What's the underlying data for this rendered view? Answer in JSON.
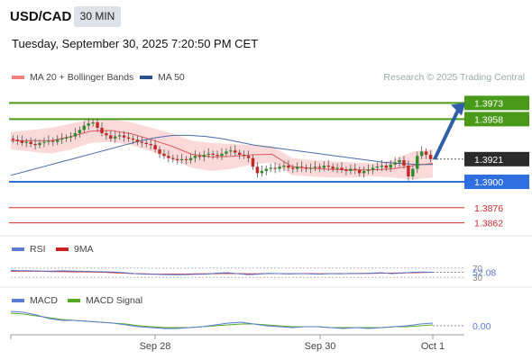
{
  "header": {
    "symbol": "USD/CAD",
    "timeframe": "30 MIN",
    "datetime": "Tuesday, September 30, 2025 7:20:50 PM CET"
  },
  "main_legend": {
    "items": [
      {
        "label": "MA 20 + Bollinger Bands",
        "color": "#f08080"
      },
      {
        "label": "MA 50",
        "color": "#2f4f8f"
      }
    ],
    "credit": "Research © 2025 Trading Central"
  },
  "chart_data": [
    {
      "type": "candlestick",
      "name": "USD/CAD 30 MIN",
      "x_ticks": [
        "Sep 28",
        "Sep 30",
        "Oct 1"
      ],
      "ylim": [
        1.385,
        1.3985
      ],
      "levels": [
        {
          "value": "1.3973",
          "price": 1.3973,
          "kind": "resistance",
          "color": "#4a9a1a"
        },
        {
          "value": "1.3958",
          "price": 1.3958,
          "kind": "resistance",
          "color": "#4a9a1a"
        },
        {
          "value": "1.3921",
          "price": 1.3921,
          "kind": "last",
          "color": "#2b2b2b"
        },
        {
          "value": "1.3900",
          "price": 1.39,
          "kind": "pivot",
          "color": "#2f6fe0"
        },
        {
          "value": "1.3876",
          "price": 1.3876,
          "kind": "support",
          "color": "#cc2b2b"
        },
        {
          "value": "1.3862",
          "price": 1.3862,
          "kind": "support",
          "color": "#cc2b2b"
        }
      ],
      "close": [
        1.3939,
        1.3938,
        1.3936,
        1.3937,
        1.3935,
        1.3934,
        1.3936,
        1.3937,
        1.3938,
        1.3937,
        1.3939,
        1.394,
        1.3941,
        1.3942,
        1.3945,
        1.3948,
        1.3952,
        1.3954,
        1.3955,
        1.395,
        1.3945,
        1.3943,
        1.394,
        1.3942,
        1.3943,
        1.3941,
        1.394,
        1.3939,
        1.3937,
        1.3936,
        1.3935,
        1.3934,
        1.393,
        1.3926,
        1.3924,
        1.3922,
        1.3921,
        1.392,
        1.3921,
        1.392,
        1.3922,
        1.3924,
        1.3923,
        1.3925,
        1.3926,
        1.3925,
        1.3924,
        1.3926,
        1.3928,
        1.3929,
        1.3927,
        1.3925,
        1.3924,
        1.3922,
        1.3914,
        1.3908,
        1.391,
        1.3912,
        1.3913,
        1.3912,
        1.3914,
        1.3915,
        1.3913,
        1.3912,
        1.3914,
        1.3913,
        1.3912,
        1.3913,
        1.3914,
        1.3913,
        1.3915,
        1.3914,
        1.3912,
        1.3913,
        1.3911,
        1.391,
        1.3912,
        1.3911,
        1.3908,
        1.391,
        1.3911,
        1.3913,
        1.3914,
        1.3915,
        1.3913,
        1.3916,
        1.3918,
        1.392,
        1.3915,
        1.3905,
        1.3912,
        1.3924,
        1.3928,
        1.3925,
        1.3921
      ],
      "ma50": [
        1.3906,
        1.391,
        1.3914,
        1.3918,
        1.3922,
        1.3926,
        1.393,
        1.3934,
        1.3938,
        1.3941,
        1.3943,
        1.3943,
        1.3942,
        1.394,
        1.3937,
        1.3934,
        1.3932,
        1.393,
        1.3928,
        1.3926,
        1.3924,
        1.3922,
        1.392,
        1.3918,
        1.3917,
        1.3916,
        1.3916
      ],
      "bollinger_upper": [
        1.3946,
        1.3948,
        1.395,
        1.3954,
        1.3958,
        1.3958,
        1.3955,
        1.395,
        1.3945,
        1.3938,
        1.3936,
        1.3935,
        1.3934,
        1.3933,
        1.3922,
        1.392,
        1.3919,
        1.3918,
        1.3917,
        1.392,
        1.3928,
        1.393
      ],
      "bollinger_lower": [
        1.393,
        1.3928,
        1.3926,
        1.393,
        1.3936,
        1.3937,
        1.3934,
        1.3928,
        1.3921,
        1.3913,
        1.391,
        1.3912,
        1.3916,
        1.3918,
        1.3906,
        1.3905,
        1.3904,
        1.3904,
        1.3905,
        1.3904,
        1.3902,
        1.3904
      ],
      "arrow": {
        "from": 1.3921,
        "to": 1.3973
      }
    },
    {
      "type": "line",
      "name": "RSI",
      "legend": [
        {
          "label": "RSI",
          "color": "#5b7bd5"
        },
        {
          "label": "9MA",
          "color": "#cc2222"
        }
      ],
      "ylim": [
        0,
        100
      ],
      "ticks": [
        "70",
        "30"
      ],
      "last_value": "52.08",
      "rsi": [
        60,
        59,
        58,
        57,
        57,
        58,
        57,
        56,
        55,
        54,
        53,
        50,
        46,
        44,
        43,
        42,
        41,
        42,
        43,
        44,
        48,
        50,
        46,
        42,
        44,
        47,
        46,
        45,
        46,
        45,
        44,
        46,
        45,
        47,
        46,
        48,
        50,
        46,
        48,
        52,
        53,
        52
      ],
      "ma9": [
        57,
        57,
        56,
        56,
        55,
        55,
        54,
        54,
        53,
        52,
        50,
        48,
        46,
        45,
        44,
        44,
        44,
        44,
        45,
        45,
        46,
        47,
        46,
        45,
        45,
        46,
        46,
        45,
        46,
        46,
        45,
        46,
        46,
        46,
        47,
        47,
        48,
        48,
        49,
        50,
        51,
        52
      ]
    },
    {
      "type": "line",
      "name": "MACD",
      "legend": [
        {
          "label": "MACD",
          "color": "#5b7bd5"
        },
        {
          "label": "MACD Signal",
          "color": "#55aa22"
        }
      ],
      "last_value": "0.00",
      "macd": [
        0.0016,
        0.0015,
        0.0012,
        0.0008,
        0.0006,
        0.0006,
        0.0005,
        0.0004,
        0.0003,
        0.0001,
        -0.0001,
        -0.0002,
        -0.0003,
        -0.0003,
        -0.0002,
        -0.0001,
        0.0001,
        0.0003,
        0.0004,
        0.0002,
        0.0,
        -0.0001,
        -0.0002,
        -0.0001,
        -0.0001,
        -0.0002,
        -0.0003,
        -0.0002,
        -0.0003,
        -0.0002,
        -0.0001,
        0.0,
        0.0002,
        0.0003
      ],
      "signal": [
        0.0014,
        0.0013,
        0.0011,
        0.0009,
        0.0007,
        0.0006,
        0.0005,
        0.0004,
        0.0003,
        0.0002,
        0.0,
        -0.0001,
        -0.0002,
        -0.0002,
        -0.0002,
        -0.0001,
        0.0,
        0.0001,
        0.0002,
        0.0002,
        0.0001,
        0.0,
        -0.0001,
        -0.0001,
        -0.0001,
        -0.0002,
        -0.0002,
        -0.0002,
        -0.0002,
        -0.0002,
        -0.0001,
        -0.0001,
        0.0,
        0.0001
      ]
    }
  ]
}
